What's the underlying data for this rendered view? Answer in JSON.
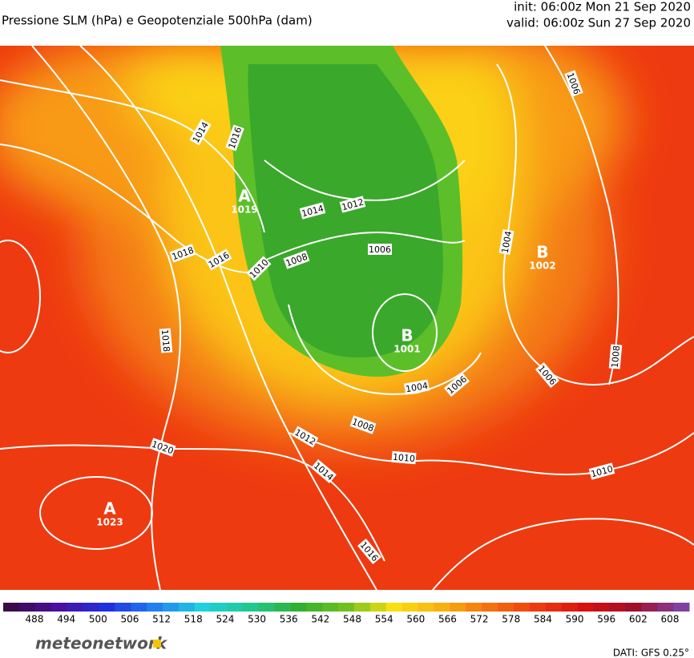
{
  "header": {
    "title": "Pressione SLM (hPa) e Geopotenziale 500hPa (dam)",
    "init": "init: 06:00z Mon 21 Sep 2020",
    "valid": "valid: 06:00z Sun 27 Sep 2020"
  },
  "centers": [
    {
      "symbol": "A",
      "value": "1019"
    },
    {
      "symbol": "B",
      "value": "1002"
    },
    {
      "symbol": "B",
      "value": "1001"
    },
    {
      "symbol": "A",
      "value": "1023"
    }
  ],
  "isobar_labels": [
    "1014",
    "1016",
    "1018",
    "1016",
    "1010",
    "1008",
    "1014",
    "1012",
    "1006",
    "1004",
    "1006",
    "1018",
    "1020",
    "1012",
    "1014",
    "1008",
    "1004",
    "1006",
    "1010",
    "1016",
    "1006",
    "1008",
    "1010"
  ],
  "colorbar": {
    "ticks": [
      488,
      494,
      500,
      506,
      512,
      518,
      524,
      530,
      536,
      542,
      548,
      554,
      560,
      566,
      572,
      578,
      584,
      590,
      596,
      602,
      608
    ]
  },
  "footer": {
    "logo": "meteonetwork",
    "source": "DATI: GFS 0.25°"
  }
}
